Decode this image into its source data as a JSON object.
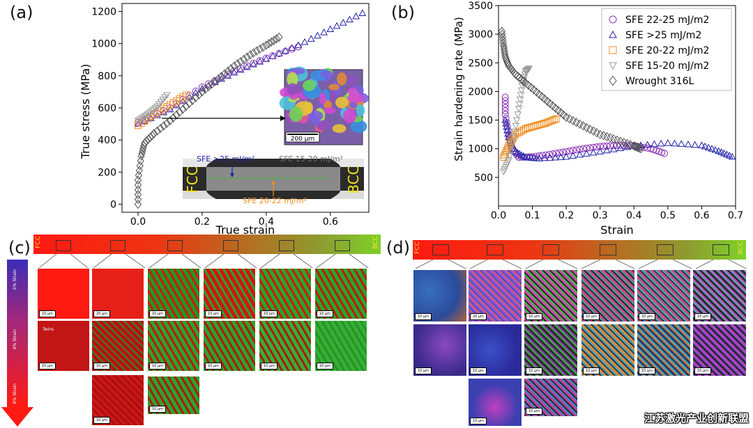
{
  "panels": {
    "a": "(a)",
    "b": "(b)",
    "c": "(c)",
    "d": "(d)"
  },
  "chart_data": [
    {
      "type": "line",
      "panel": "(a)",
      "xlabel": "True strain",
      "ylabel": "True stress (MPa)",
      "xlim": [
        -0.05,
        0.72
      ],
      "ylim": [
        -50,
        1250
      ],
      "x_ticks": [
        "0.0",
        "0.2",
        "0.4",
        "0.6"
      ],
      "x_tick_values": [
        0.0,
        0.2,
        0.4,
        0.6
      ],
      "y_ticks": [
        "0",
        "200",
        "400",
        "600",
        "800",
        "1000",
        "1200"
      ],
      "y_tick_values": [
        0,
        200,
        400,
        600,
        800,
        1000,
        1200
      ],
      "grid": false,
      "series": [
        {
          "name": "",
          "marker": "triangle",
          "color": "#1f1fa8",
          "x": [
            0.0,
            0.1,
            0.2,
            0.3,
            0.4,
            0.5,
            0.6,
            0.7
          ],
          "y": [
            500,
            590,
            720,
            820,
            905,
            990,
            1090,
            1190
          ]
        },
        {
          "name": "",
          "marker": "circle",
          "color": "#8a2db5",
          "x": [
            0.0,
            0.1,
            0.2,
            0.3,
            0.4,
            0.5
          ],
          "y": [
            510,
            600,
            730,
            830,
            910,
            980
          ]
        },
        {
          "name": "",
          "marker": "square",
          "color": "#f08c1e",
          "x": [
            0.0,
            0.05,
            0.1,
            0.15
          ],
          "y": [
            490,
            560,
            620,
            680
          ]
        },
        {
          "name": "",
          "marker": "triangle-down",
          "color": "#9a9a9a",
          "x": [
            0.0,
            0.03,
            0.06,
            0.09
          ],
          "y": [
            520,
            560,
            610,
            680
          ]
        },
        {
          "name": "",
          "marker": "diamond",
          "color": "#555555",
          "x": [
            0.0,
            0.0,
            0.01,
            0.02,
            0.05,
            0.1,
            0.15,
            0.2,
            0.25,
            0.3,
            0.35,
            0.4,
            0.44
          ],
          "y": [
            0,
            150,
            300,
            380,
            440,
            520,
            610,
            700,
            780,
            860,
            930,
            990,
            1040
          ]
        }
      ],
      "inset": {
        "scale_label": "200 μm",
        "labels": {
          "sfe_high": "SFE >25 mJ/m²",
          "sfe_low": "SFE 15-20 mJ/m²",
          "sfe_mid": "SFE 20-22 mJ/m²",
          "left": "FCC",
          "right": "BCC"
        }
      }
    },
    {
      "type": "scatter",
      "panel": "(b)",
      "xlabel": "Strain",
      "ylabel": "Strain hardening rate (MPa)",
      "xlim": [
        0.0,
        0.7
      ],
      "ylim": [
        0,
        3500
      ],
      "x_ticks": [
        "0.0",
        "0.1",
        "0.2",
        "0.3",
        "0.4",
        "0.5",
        "0.6",
        "0.7"
      ],
      "x_tick_values": [
        0.0,
        0.1,
        0.2,
        0.3,
        0.4,
        0.5,
        0.6,
        0.7
      ],
      "y_ticks": [
        "500",
        "1000",
        "1500",
        "2000",
        "2500",
        "3000",
        "3500"
      ],
      "y_tick_values": [
        500,
        1000,
        1500,
        2000,
        2500,
        3000,
        3500
      ],
      "grid": false,
      "legend_position": "top-right",
      "series": [
        {
          "name": "SFE 22-25 mJ/m2",
          "marker": "circle",
          "color": "#8a2db5",
          "x": [
            0.02,
            0.02,
            0.03,
            0.04,
            0.06,
            0.1,
            0.15,
            0.2,
            0.25,
            0.3,
            0.35,
            0.4,
            0.45,
            0.49
          ],
          "y": [
            1900,
            1600,
            1250,
            1000,
            850,
            860,
            900,
            950,
            1000,
            1040,
            1060,
            1050,
            1000,
            920
          ]
        },
        {
          "name": "SFE >25 mJ/m2",
          "marker": "triangle",
          "color": "#1f1fa8",
          "x": [
            0.02,
            0.03,
            0.05,
            0.08,
            0.12,
            0.2,
            0.3,
            0.4,
            0.5,
            0.6,
            0.65,
            0.69
          ],
          "y": [
            1500,
            1200,
            950,
            850,
            830,
            860,
            950,
            1050,
            1100,
            1060,
            960,
            860
          ]
        },
        {
          "name": "SFE 20-22 mJ/m2",
          "marker": "square",
          "color": "#f08c1e",
          "x": [
            0.015,
            0.03,
            0.05,
            0.08,
            0.11,
            0.14,
            0.17
          ],
          "y": [
            850,
            1050,
            1250,
            1350,
            1400,
            1450,
            1520
          ]
        },
        {
          "name": "SFE 15-20 mJ/m2",
          "marker": "triangle-down",
          "color": "#9a9a9a",
          "x": [
            0.015,
            0.03,
            0.045,
            0.06,
            0.07,
            0.08,
            0.09
          ],
          "y": [
            600,
            800,
            1200,
            1700,
            2100,
            2350,
            2400
          ]
        },
        {
          "name": "Wrought 316L",
          "marker": "diamond",
          "color": "#555555",
          "x": [
            0.01,
            0.015,
            0.02,
            0.03,
            0.05,
            0.08,
            0.12,
            0.16,
            0.2,
            0.25,
            0.3,
            0.35,
            0.4,
            0.42
          ],
          "y": [
            3050,
            2800,
            2600,
            2450,
            2300,
            2150,
            1950,
            1750,
            1550,
            1400,
            1250,
            1150,
            1050,
            1000
          ]
        }
      ]
    }
  ],
  "panel_c": {
    "bar_left": "FCC",
    "bar_right": "BCC",
    "strain_labels": [
      "0% Strain",
      "4% Strain",
      "8% Strain"
    ],
    "twins_label": "Twins",
    "scale": "10 μm",
    "scale_alt": "20 μm"
  },
  "panel_d": {
    "bar_left": "FCC",
    "bar_right": "BCC",
    "scale": "10 μm",
    "scale_alt": "20 μm"
  },
  "watermark": "江苏激光产业创新联盟"
}
